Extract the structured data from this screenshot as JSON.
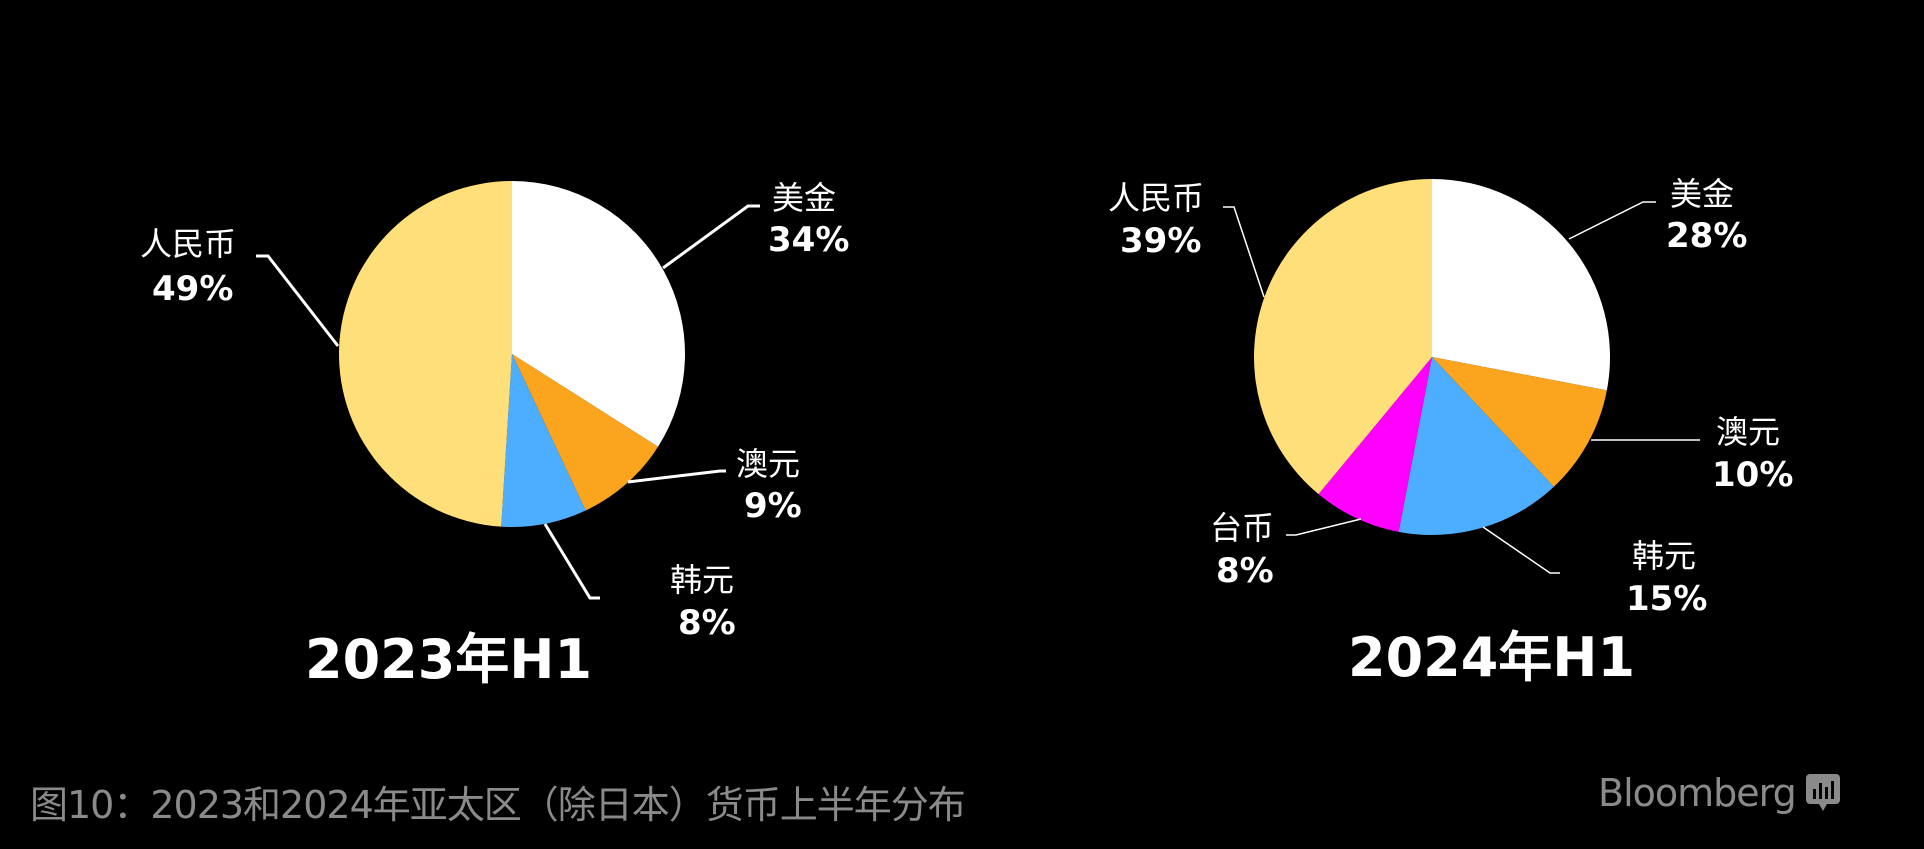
{
  "chart_data": [
    {
      "type": "pie",
      "title": "2023年H1",
      "start_angle": "12 o'clock, clockwise",
      "slices": [
        {
          "label": "美金",
          "value": 34,
          "display": "34%",
          "color": "#FFFFFF"
        },
        {
          "label": "澳元",
          "value": 9,
          "display": "9%",
          "color": "#FBA41E"
        },
        {
          "label": "韩元",
          "value": 8,
          "display": "8%",
          "color": "#4DAEFF"
        },
        {
          "label": "人民币",
          "value": 49,
          "display": "49%",
          "color": "#FFDF7A"
        }
      ]
    },
    {
      "type": "pie",
      "title": "2024年H1",
      "start_angle": "12 o'clock, clockwise",
      "slices": [
        {
          "label": "美金",
          "value": 28,
          "display": "28%",
          "color": "#FFFFFF"
        },
        {
          "label": "澳元",
          "value": 10,
          "display": "10%",
          "color": "#FBA41E"
        },
        {
          "label": "韩元",
          "value": 15,
          "display": "15%",
          "color": "#4DAEFF"
        },
        {
          "label": "台币",
          "value": 8,
          "display": "8%",
          "color": "#FF00FF"
        },
        {
          "label": "人民币",
          "value": 39,
          "display": "39%",
          "color": "#FFDF7A"
        }
      ]
    }
  ],
  "charts": {
    "left": {
      "title": "2023年H1",
      "labels": {
        "usd": {
          "name": "美金",
          "pct": "34%"
        },
        "aud": {
          "name": "澳元",
          "pct": "9%"
        },
        "krw": {
          "name": "韩元",
          "pct": "8%"
        },
        "cny": {
          "name": "人民币",
          "pct": "49%"
        }
      }
    },
    "right": {
      "title": "2024年H1",
      "labels": {
        "usd": {
          "name": "美金",
          "pct": "28%"
        },
        "aud": {
          "name": "澳元",
          "pct": "10%"
        },
        "krw": {
          "name": "韩元",
          "pct": "15%"
        },
        "twd": {
          "name": "台币",
          "pct": "8%"
        },
        "cny": {
          "name": "人民币",
          "pct": "39%"
        }
      }
    }
  },
  "caption": "图10：2023和2024年亚太区（除日本）货币上半年分布",
  "brand": {
    "name": "Bloomberg",
    "icon": "bloomberg-chart-bubble-icon"
  },
  "colors": {
    "background": "#000000",
    "text": "#FFFFFF",
    "caption": "#8A8A8A"
  }
}
